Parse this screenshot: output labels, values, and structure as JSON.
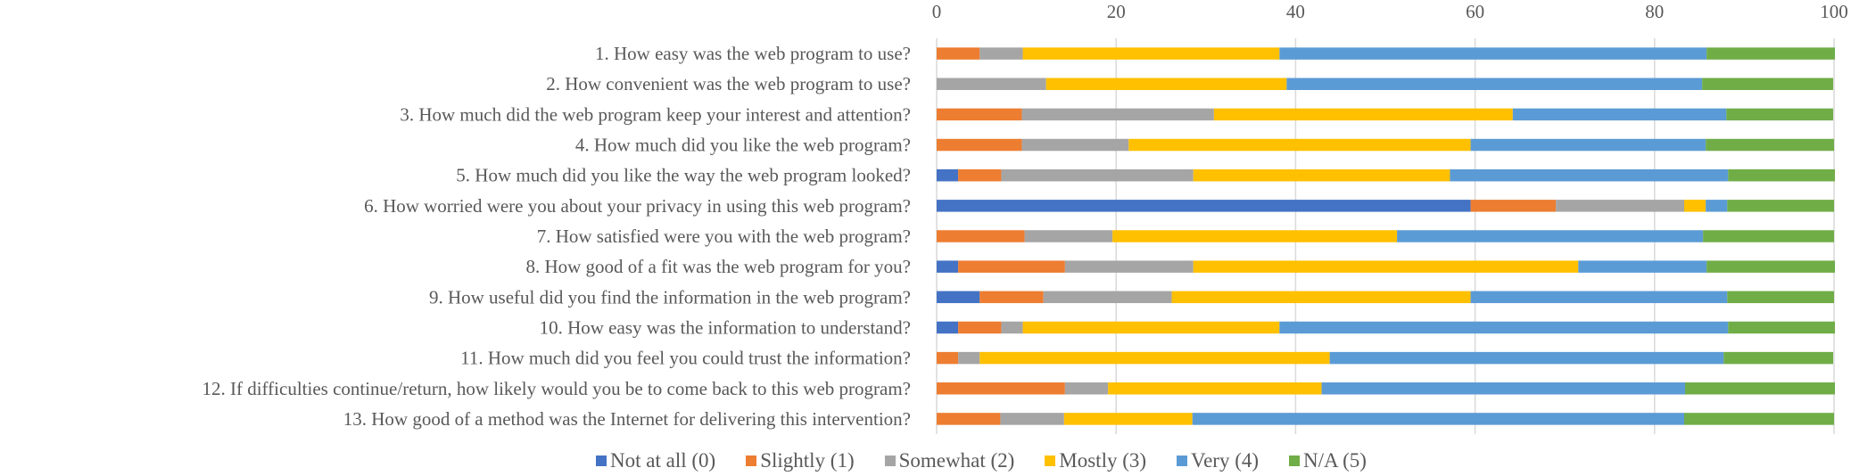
{
  "chart_data": {
    "type": "bar",
    "orientation": "horizontal",
    "stacked": true,
    "title": "",
    "xlabel": "",
    "ylabel": "",
    "xlim": [
      0,
      100
    ],
    "x_ticks": [
      "0",
      "20",
      "40",
      "60",
      "80",
      "100"
    ],
    "x_tick_values": [
      0,
      20,
      40,
      60,
      80,
      100
    ],
    "x_axis_position": "top",
    "grid": true,
    "legend_position": "bottom",
    "categories": [
      "1. How easy was the web program to use?",
      "2. How convenient was the web program to use?",
      "3. How much did the web program keep your interest and attention?",
      "4. How much did you like the web program?",
      "5. How much did you like the way the web program looked?",
      "6. How worried were you about your privacy in using this web program?",
      "7. How satisfied were you with the web program?",
      "8. How good of a fit was the web program for you?",
      "9. How useful did you find the information in the web program?",
      "10. How easy was the information to understand?",
      "11. How much did you feel you could trust the information?",
      "12. If difficulties continue/return, how likely would you be to come back to this web program?",
      "13. How good of a method was the Internet for delivering this intervention?"
    ],
    "series": [
      {
        "name": "Not at all (0)",
        "color": "#4472C4",
        "values": [
          0,
          0,
          0,
          0,
          2.4,
          59.5,
          0,
          2.4,
          4.8,
          2.4,
          0,
          0,
          0
        ]
      },
      {
        "name": "Slightly (1)",
        "color": "#ED7D31",
        "values": [
          4.8,
          0,
          9.5,
          9.5,
          4.8,
          9.5,
          9.8,
          11.9,
          7.1,
          4.8,
          2.4,
          14.3,
          7.1
        ]
      },
      {
        "name": "Somewhat (2)",
        "color": "#A5A5A5",
        "values": [
          4.8,
          12.2,
          21.4,
          11.9,
          21.4,
          14.3,
          9.8,
          14.3,
          14.3,
          2.4,
          2.4,
          4.8,
          7.1
        ]
      },
      {
        "name": "Mostly (3)",
        "color": "#FFC000",
        "values": [
          28.6,
          26.8,
          33.3,
          38.1,
          28.6,
          2.4,
          31.7,
          42.9,
          33.3,
          28.6,
          39.0,
          23.8,
          14.3
        ]
      },
      {
        "name": "Very (4)",
        "color": "#5B9BD5",
        "values": [
          47.6,
          46.3,
          23.8,
          26.2,
          31.0,
          2.4,
          34.1,
          14.3,
          28.6,
          50.0,
          43.9,
          40.5,
          54.8
        ]
      },
      {
        "name": "N/A (5)",
        "color": "#70AD47",
        "values": [
          14.3,
          14.6,
          11.9,
          14.3,
          11.9,
          11.9,
          14.6,
          14.3,
          11.9,
          11.9,
          12.2,
          16.7,
          16.7
        ]
      }
    ]
  }
}
